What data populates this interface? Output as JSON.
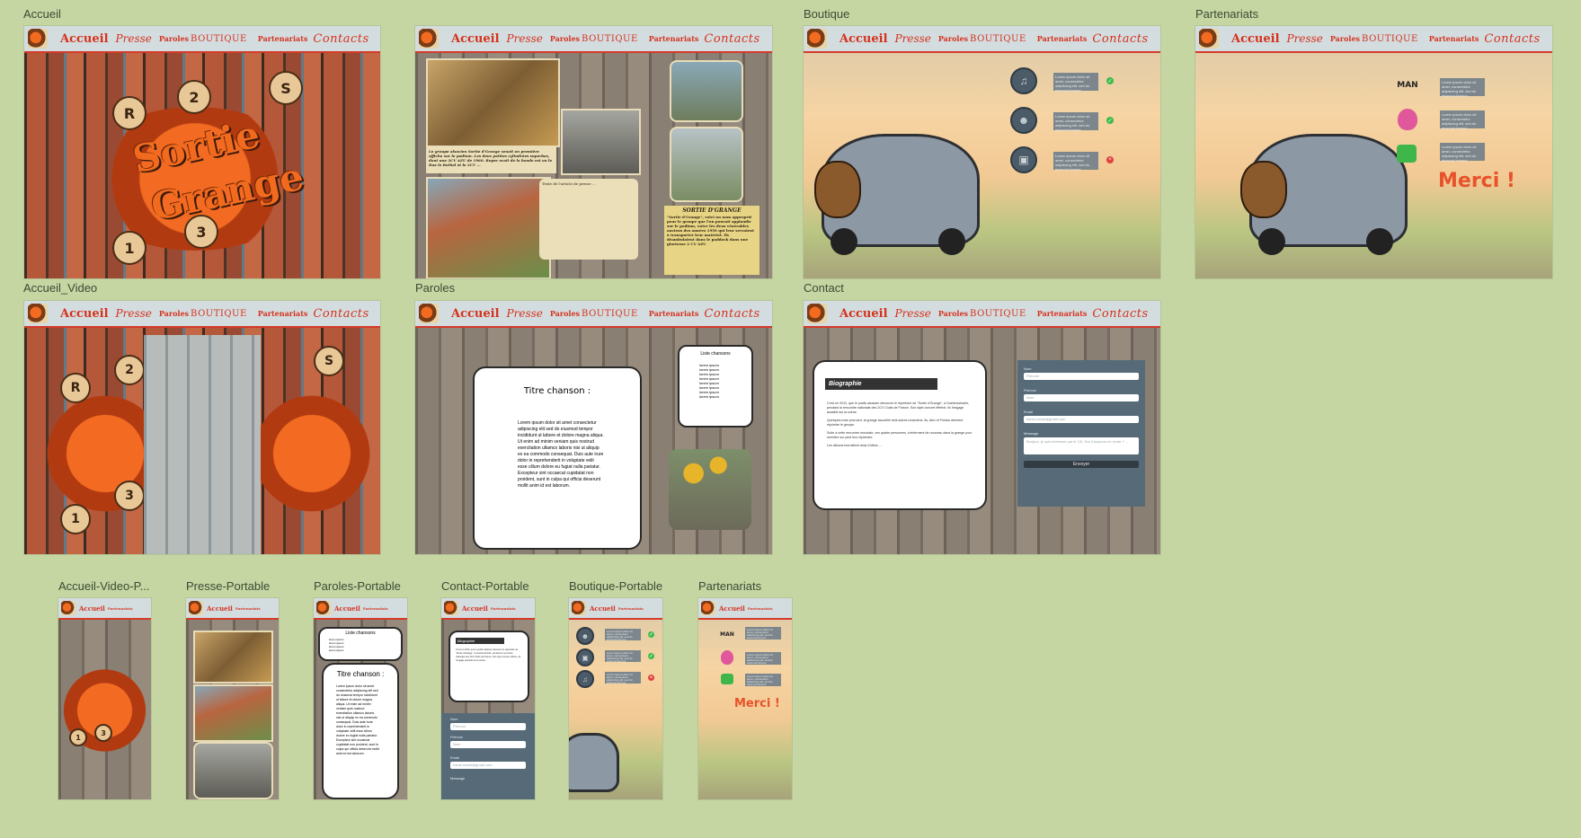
{
  "frames": {
    "accueil": "Accueil",
    "presse": "",
    "boutique": "Boutique",
    "partenariats": "Partenariats",
    "accueil_video": "Accueil_Video",
    "paroles": "Paroles",
    "contact": "Contact",
    "accueil_video_portable": "Accueil-Video-P...",
    "presse_portable": "Presse-Portable",
    "paroles_portable": "Paroles-Portable",
    "contact_portable": "Contact-Portable",
    "boutique_portable": "Boutique-Portable",
    "partenariats_portable": "Partenariats"
  },
  "nav": {
    "accueil": "Accueil",
    "presse": "Presse",
    "paroles": "Paroles",
    "boutique": "BOUTIQUE",
    "partenariats": "Partenariats",
    "contacts": "Contacts"
  },
  "accueil": {
    "title_line1": "Sortie",
    "title_line2": "Grange",
    "gears": [
      "R",
      "2",
      "S",
      "1",
      "3"
    ]
  },
  "presse": {
    "caption_title": "SORTIE D'GRANGE",
    "caption_text": "\"Sortie d'Grange\", voici un nom approprié pour le groupe que l'on pouvait applaudir sur le podium, entre les deux vénérables anciens des années 1950 qui leur servaient à transporter leur matériel. Ils déambulaient dans le paddock dans une glorieuse 2 CV AZU",
    "left_article": "Le groupe alsacien Sortie d'Grange venait en première affiche sur le podium. Les deux petites cylindrées superbes, dont une 2CV AZU de 1960. Ruper avait de la bande est ou le Rue le Rethel et le 2CV ...",
    "news_text": "Texte de l'article de presse ..."
  },
  "boutique": {
    "items": [
      {
        "icon": "music-icon",
        "text": "Lorem ipsum dolor sit amet, consectetur adipiscing elit, sed do eiusmod tempor",
        "status": "ok"
      },
      {
        "icon": "user-icon",
        "text": "Lorem ipsum dolor sit amet, consectetur adipiscing elit, sed do eiusmod tempor",
        "status": "ok"
      },
      {
        "icon": "image-icon",
        "text": "Lorem ipsum dolor sit amet, consectetur adipiscing elit, sed do eiusmod tempor",
        "status": "ko"
      }
    ],
    "ok_glyph": "✓",
    "ko_glyph": "×"
  },
  "partenariats": {
    "logos": [
      "MAN",
      "",
      ""
    ],
    "texts": [
      "Lorem ipsum dolor sit amet, consectetur adipiscing elit, sed do eiusmod tempor",
      "Lorem ipsum dolor sit amet, consectetur adipiscing elit, sed do eiusmod tempor",
      "Lorem ipsum dolor sit amet, consectetur adipiscing elit, sed do eiusmod tempor"
    ],
    "merci": "Merci !"
  },
  "paroles": {
    "song_title": "Titre chanson :",
    "lyrics": "Lorem ipsum dolor sit amet consectetur adipiscing elit sed do eiusmod tempor incididunt ut labore et dolore magna aliqua. Ut enim ad minim veniam quis nostrud exercitation ullamco laboris nisi ut aliquip ex ea commodo consequat. Duis aute irure dolor in reprehenderit in voluptate velit esse cillum dolore eu fugiat nulla pariatur. Excepteur sint occaecat cupidatat non proident, sunt in culpa qui officia deserunt mollit anim id est laborum.",
    "list_title": "Liste chansons",
    "list": [
      "lorem ipsum",
      "lorem ipsum",
      "lorem ipsum",
      "lorem ipsum",
      "lorem ipsum",
      "lorem ipsum",
      "lorem ipsum",
      "lorem ipsum"
    ]
  },
  "contact": {
    "bio_title": "Biographie",
    "bio_p1": "C'est en 2012, que le public alsacien découvre le répertoire de \"Sortie d'Grange\", à Gueberschwihr, pendant la rencontre nationale des 2CV Clubs de France. Son style concert effréné, ils l'engage aussitôt sur la scène.",
    "bio_p2": "Quelques mois plus tard, la grange accueille trois autres musiciens. Ils, Alex et Florian viennent rejoindre le groupe.",
    "bio_p3": "Suite à cette rencontre musicale, ces quatre personnes, s'enferment de nouveau dans la grange pour remettre sur pied leur répertoire.",
    "bio_p4": "Les albums fourmillent ainsi d'idées ...",
    "name_label": "Nom",
    "name_placeholder": "Prénom",
    "firstname_label": "Prénom",
    "firstname_placeholder": "Nom",
    "email_label": "Email",
    "email_placeholder": "name.name@gmail.com",
    "message_label": "Message",
    "message_placeholder": "Bonjour, je suis intéressé par le CD. Est-il toujours en vente ? ...",
    "send": "Envoyer"
  },
  "colors": {
    "nav_red": "#d5321d",
    "canvas_bg": "#c5d6a3",
    "merci": "#e8522a"
  }
}
